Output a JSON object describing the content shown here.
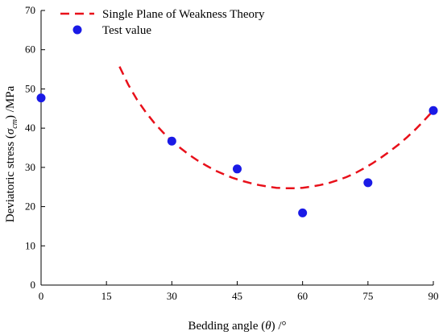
{
  "chart_data": {
    "type": "scatter",
    "title": "",
    "xlabel": "Bedding angle (θ) /°",
    "ylabel": "Deviatoric stress (σcm) /MPa",
    "ylabel_parts": {
      "before": "Deviatoric stress (",
      "symbol": "σ",
      "subscript": "cm",
      "after": ") /MPa"
    },
    "xlabel_parts": {
      "before": "Bedding angle (",
      "symbol": "θ",
      "after": ") /°"
    },
    "xlim": [
      0,
      90
    ],
    "ylim": [
      0,
      70
    ],
    "xticks": [
      0,
      15,
      30,
      45,
      60,
      75,
      90
    ],
    "yticks": [
      0,
      10,
      20,
      30,
      40,
      50,
      60,
      70
    ],
    "grid": false,
    "legend_position": "top-left",
    "series": [
      {
        "name": "Single Plane of Weakness Theory",
        "kind": "line",
        "style": "dashed",
        "color": "#e8101a",
        "x": [
          18,
          20,
          22,
          24,
          26,
          28,
          30,
          32,
          34,
          36,
          38,
          40,
          42,
          44,
          46,
          48,
          50,
          52,
          54,
          56,
          58,
          60,
          62,
          64,
          66,
          68,
          70,
          72,
          74,
          76,
          78,
          80,
          82,
          84,
          86,
          88,
          90
        ],
        "y": [
          55.7,
          51.1,
          47.3,
          44.1,
          41.3,
          38.9,
          36.7,
          34.9,
          33.2,
          31.7,
          30.4,
          29.2,
          28.2,
          27.3,
          26.6,
          26.0,
          25.5,
          25.1,
          24.8,
          24.7,
          24.7,
          24.8,
          25.1,
          25.5,
          26.0,
          26.7,
          27.5,
          28.5,
          29.7,
          31.0,
          32.5,
          34.1,
          35.8,
          37.7,
          39.8,
          42.1,
          44.5
        ]
      },
      {
        "name": "Test value",
        "kind": "scatter",
        "color": "#1a1ae6",
        "x": [
          0,
          30,
          45,
          60,
          75,
          90
        ],
        "y": [
          47.7,
          36.7,
          29.6,
          18.4,
          26.1,
          44.5
        ]
      }
    ]
  }
}
